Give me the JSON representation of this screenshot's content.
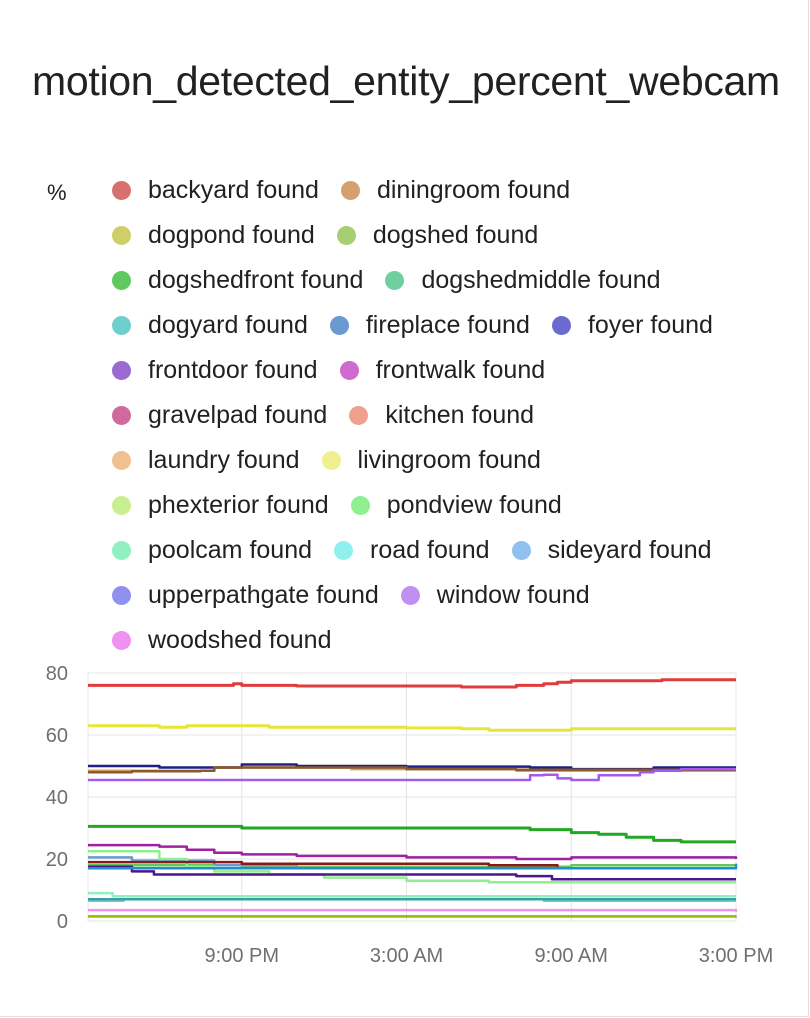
{
  "card": {
    "title": "motion_detected_entity_percent_webcam",
    "unit": "%"
  },
  "chart_data": {
    "type": "line",
    "title": "motion_detected_entity_percent_webcam",
    "ylabel": "%",
    "ylim": [
      0,
      80
    ],
    "y_ticks": [
      "80",
      "60",
      "40",
      "20",
      "0"
    ],
    "y_tick_values": [
      80,
      60,
      40,
      20,
      0
    ],
    "x_ticks": [
      "9:00 PM",
      "3:00 AM",
      "9:00 AM",
      "3:00 PM"
    ],
    "x_tick_hours": [
      6,
      12,
      18,
      24
    ],
    "x_domain_hours": [
      0.4,
      24
    ],
    "x_unit": "hours elapsed",
    "grid": true,
    "legend_placement": "top",
    "series": [
      {
        "name": "backyard found",
        "color": "#d87070",
        "draw": false
      },
      {
        "name": "diningroom found",
        "color": "#d4a06e",
        "points": [
          [
            0.4,
            48.5
          ],
          [
            4.5,
            48.5
          ],
          [
            5,
            49.5
          ],
          [
            10,
            49
          ],
          [
            16,
            48.5
          ],
          [
            18,
            48.5
          ],
          [
            19.5,
            48.5
          ],
          [
            24,
            48.5
          ]
        ]
      },
      {
        "name": "dogpond found",
        "color": "#cfcf6a",
        "draw": false
      },
      {
        "name": "dogshed found",
        "color": "#a6cf73",
        "points": [
          [
            0.4,
            1.5
          ],
          [
            24,
            1
          ]
        ]
      },
      {
        "name": "dogshedfront found",
        "color": "#5fc95f",
        "points": [
          [
            0.4,
            18
          ],
          [
            4,
            18
          ],
          [
            6,
            17.5
          ],
          [
            18,
            18
          ],
          [
            24,
            18
          ]
        ]
      },
      {
        "name": "dogshedmiddle found",
        "color": "#6fcfa0",
        "draw": false
      },
      {
        "name": "dogyard found",
        "color": "#6fcfcf",
        "points": [
          [
            0.4,
            6.5
          ],
          [
            1.6,
            6.5
          ],
          [
            1.7,
            7
          ],
          [
            10,
            7
          ],
          [
            17,
            6.5
          ],
          [
            24,
            6.5
          ]
        ]
      },
      {
        "name": "fireplace found",
        "color": "#6a9bd0",
        "points": [
          [
            0.4,
            20.5
          ],
          [
            2,
            19.5
          ],
          [
            5,
            18
          ],
          [
            8,
            17
          ],
          [
            24,
            17
          ]
        ]
      },
      {
        "name": "foyer found",
        "color": "#6a6ad0",
        "draw": false
      },
      {
        "name": "frontdoor found",
        "color": "#9a6ad0",
        "draw": false
      },
      {
        "name": "frontwalk found",
        "color": "#cf6acf",
        "draw": false
      },
      {
        "name": "gravelpad found",
        "color": "#cf6a9f",
        "draw": false
      },
      {
        "name": "kitchen found",
        "color": "#f0a090",
        "draw": false
      },
      {
        "name": "laundry found",
        "color": "#f0c090",
        "draw": false
      },
      {
        "name": "livingroom found",
        "color": "#f0f090",
        "draw": false
      },
      {
        "name": "phexterior found",
        "color": "#c8f090",
        "draw": false
      },
      {
        "name": "pondview found",
        "color": "#90f090",
        "points": [
          [
            0.4,
            22.5
          ],
          [
            1.5,
            22.5
          ],
          [
            3,
            20
          ],
          [
            4,
            17.5
          ],
          [
            5,
            16
          ],
          [
            7,
            15
          ],
          [
            9,
            14
          ],
          [
            12,
            13
          ],
          [
            15,
            12.5
          ],
          [
            24,
            12.5
          ]
        ]
      },
      {
        "name": "poolcam found",
        "color": "#90f0c0",
        "points": [
          [
            0.4,
            9
          ],
          [
            1.2,
            9
          ],
          [
            1.3,
            8
          ],
          [
            24,
            8
          ]
        ]
      },
      {
        "name": "road found",
        "color": "#90f0f0",
        "draw": false
      },
      {
        "name": "sideyard found",
        "color": "#90c0f0",
        "draw": false
      },
      {
        "name": "upperpathgate found",
        "color": "#9090f0",
        "draw": false
      },
      {
        "name": "window found",
        "color": "#c090f0",
        "draw": false
      },
      {
        "name": "woodshed found",
        "color": "#f090f0",
        "points": [
          [
            0.4,
            3.5
          ],
          [
            12,
            3.5
          ],
          [
            24,
            3
          ]
        ]
      },
      {
        "name": "",
        "color": "#e03c3c",
        "width": 3,
        "points": [
          [
            0.4,
            76
          ],
          [
            5.5,
            76
          ],
          [
            5.7,
            76.5
          ],
          [
            6,
            76
          ],
          [
            8,
            75.8
          ],
          [
            12,
            75.8
          ],
          [
            14,
            75.5
          ],
          [
            15.3,
            75.5
          ],
          [
            16,
            76
          ],
          [
            17,
            76.5
          ],
          [
            17.5,
            77
          ],
          [
            18,
            77.5
          ],
          [
            21,
            77.5
          ],
          [
            21.3,
            77.8
          ],
          [
            24,
            77.8
          ]
        ]
      },
      {
        "name": "",
        "color": "#e6e63a",
        "width": 3,
        "points": [
          [
            0.4,
            63
          ],
          [
            3,
            62.5
          ],
          [
            4,
            63
          ],
          [
            7,
            62.5
          ],
          [
            12,
            62.3
          ],
          [
            14,
            62
          ],
          [
            15,
            61.5
          ],
          [
            17,
            61.5
          ],
          [
            18,
            62
          ],
          [
            24,
            62
          ]
        ]
      },
      {
        "name": "",
        "color": "#1f1f8a",
        "points": [
          [
            0.4,
            50
          ],
          [
            3,
            49.5
          ],
          [
            5,
            49.5
          ],
          [
            6,
            50.5
          ],
          [
            8,
            50
          ],
          [
            12,
            49.8
          ],
          [
            16.5,
            49.5
          ],
          [
            18,
            49
          ],
          [
            21,
            49.5
          ],
          [
            24,
            49.5
          ]
        ]
      },
      {
        "name": "",
        "color": "#8a5a2a",
        "points": [
          [
            0.4,
            48
          ],
          [
            2,
            48.3
          ],
          [
            4,
            48.3
          ],
          [
            4.5,
            48.5
          ],
          [
            5,
            49.5
          ],
          [
            8,
            49.5
          ],
          [
            12,
            49
          ],
          [
            16,
            48.8
          ],
          [
            24,
            48.8
          ]
        ]
      },
      {
        "name": "",
        "color": "#a35aef",
        "points": [
          [
            0.4,
            45.5
          ],
          [
            16,
            45.5
          ],
          [
            16.5,
            47
          ],
          [
            17,
            47.2
          ],
          [
            17.5,
            46
          ],
          [
            18,
            45.5
          ],
          [
            19,
            47
          ],
          [
            20,
            47
          ],
          [
            20.5,
            48
          ],
          [
            21,
            48.5
          ],
          [
            22,
            49
          ],
          [
            24,
            49
          ]
        ]
      },
      {
        "name": "",
        "color": "#22a822",
        "width": 3,
        "points": [
          [
            0.4,
            30.5
          ],
          [
            6,
            30
          ],
          [
            15,
            30
          ],
          [
            16.5,
            29.5
          ],
          [
            18,
            28.5
          ],
          [
            19,
            28
          ],
          [
            20,
            27
          ],
          [
            21,
            26
          ],
          [
            22,
            25.5
          ],
          [
            24,
            25.5
          ]
        ]
      },
      {
        "name": "",
        "color": "#a020a0",
        "points": [
          [
            0.4,
            24.5
          ],
          [
            2,
            24.5
          ],
          [
            3,
            24
          ],
          [
            4,
            23
          ],
          [
            5,
            22
          ],
          [
            6,
            21.5
          ],
          [
            8,
            21
          ],
          [
            12,
            20.5
          ],
          [
            16,
            20
          ],
          [
            18,
            20.5
          ],
          [
            24,
            20
          ]
        ]
      },
      {
        "name": "",
        "color": "#8a1a1a",
        "points": [
          [
            0.4,
            19
          ],
          [
            6,
            18.5
          ],
          [
            15,
            18
          ],
          [
            17.5,
            17
          ],
          [
            24,
            17
          ]
        ]
      },
      {
        "name": "",
        "color": "#4b168a",
        "points": [
          [
            0.4,
            17.5
          ],
          [
            1.5,
            17.5
          ],
          [
            2,
            16
          ],
          [
            2.8,
            15
          ],
          [
            6,
            15
          ],
          [
            8,
            15
          ],
          [
            9,
            15
          ],
          [
            16,
            14.5
          ],
          [
            17,
            14.5
          ],
          [
            17.3,
            13.5
          ],
          [
            24,
            13.5
          ]
        ]
      },
      {
        "name": "",
        "color": "#1f8fcf",
        "points": [
          [
            0.4,
            17
          ],
          [
            24,
            18.5
          ]
        ]
      },
      {
        "name": "",
        "color": "#3aa0a0",
        "points": [
          [
            0.4,
            7
          ],
          [
            24,
            7
          ]
        ]
      },
      {
        "name": "",
        "color": "#90c000",
        "points": [
          [
            0.4,
            1.5
          ],
          [
            24,
            1.5
          ]
        ]
      }
    ]
  }
}
